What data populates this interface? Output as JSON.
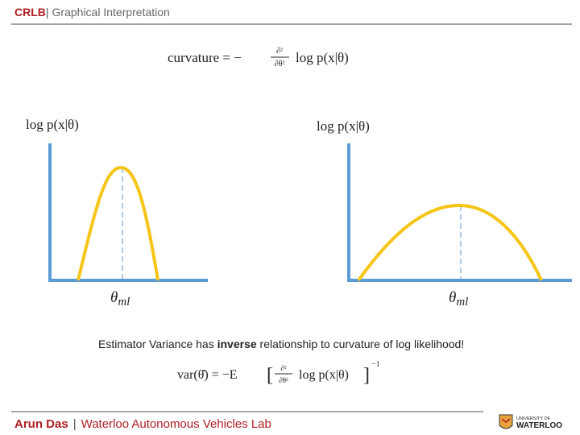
{
  "header": {
    "tag": "CRLB",
    "separator": "|",
    "title": "Graphical Interpretation"
  },
  "curvature_formula": {
    "lhs": "curvature = −",
    "numerator": "∂²",
    "denominator": "∂θ²",
    "rhs": "log p(x|θ)"
  },
  "plots": [
    {
      "y_label": "log p(x|θ)",
      "x_label": "θ",
      "x_label_sub": "ml"
    },
    {
      "y_label": "log p(x|θ)",
      "x_label": "θ",
      "x_label_sub": "ml"
    }
  ],
  "statement": {
    "before": "Estimator Variance has ",
    "emphasis": "inverse",
    "after": " relationship to curvature of log likelihood!"
  },
  "variance_formula": {
    "lhs": "var(θ̂) = −E",
    "open": "[",
    "numerator": "∂²",
    "denominator": "∂θ²",
    "rhs": "log p(x|θ)",
    "close": "]",
    "exponent": "−1"
  },
  "footer": {
    "author": "Arun Das",
    "separator": "|",
    "lab": "Waterloo Autonomous Vehicles Lab",
    "logo_top": "UNIVERSITY OF",
    "logo_bottom": "WATERLOO"
  }
}
